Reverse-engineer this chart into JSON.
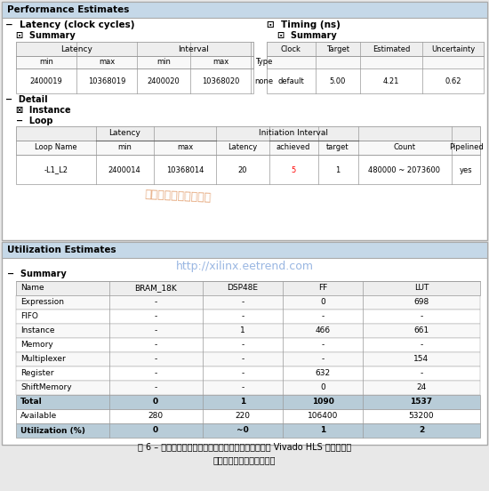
{
  "title": "Performance Estimates",
  "bg_color": "#e8e8e8",
  "header_bg": "#c5d8e8",
  "util_header_bg": "#c5d8e8",
  "table_header_bg": "#e8e8e8",
  "total_row_bg": "#b8ccd8",
  "util_row_bg": "#b8ccd8",
  "caption": "图 6 – 初级中值参考滤波器作为有效顶层函数使用时的 Vivado HLS 性能估算；\n吞吐量与理想值相距甚远。",
  "watermark1": "创新网赛灵思中文社区",
  "watermark2": "http://xilinx.eetrend.com"
}
